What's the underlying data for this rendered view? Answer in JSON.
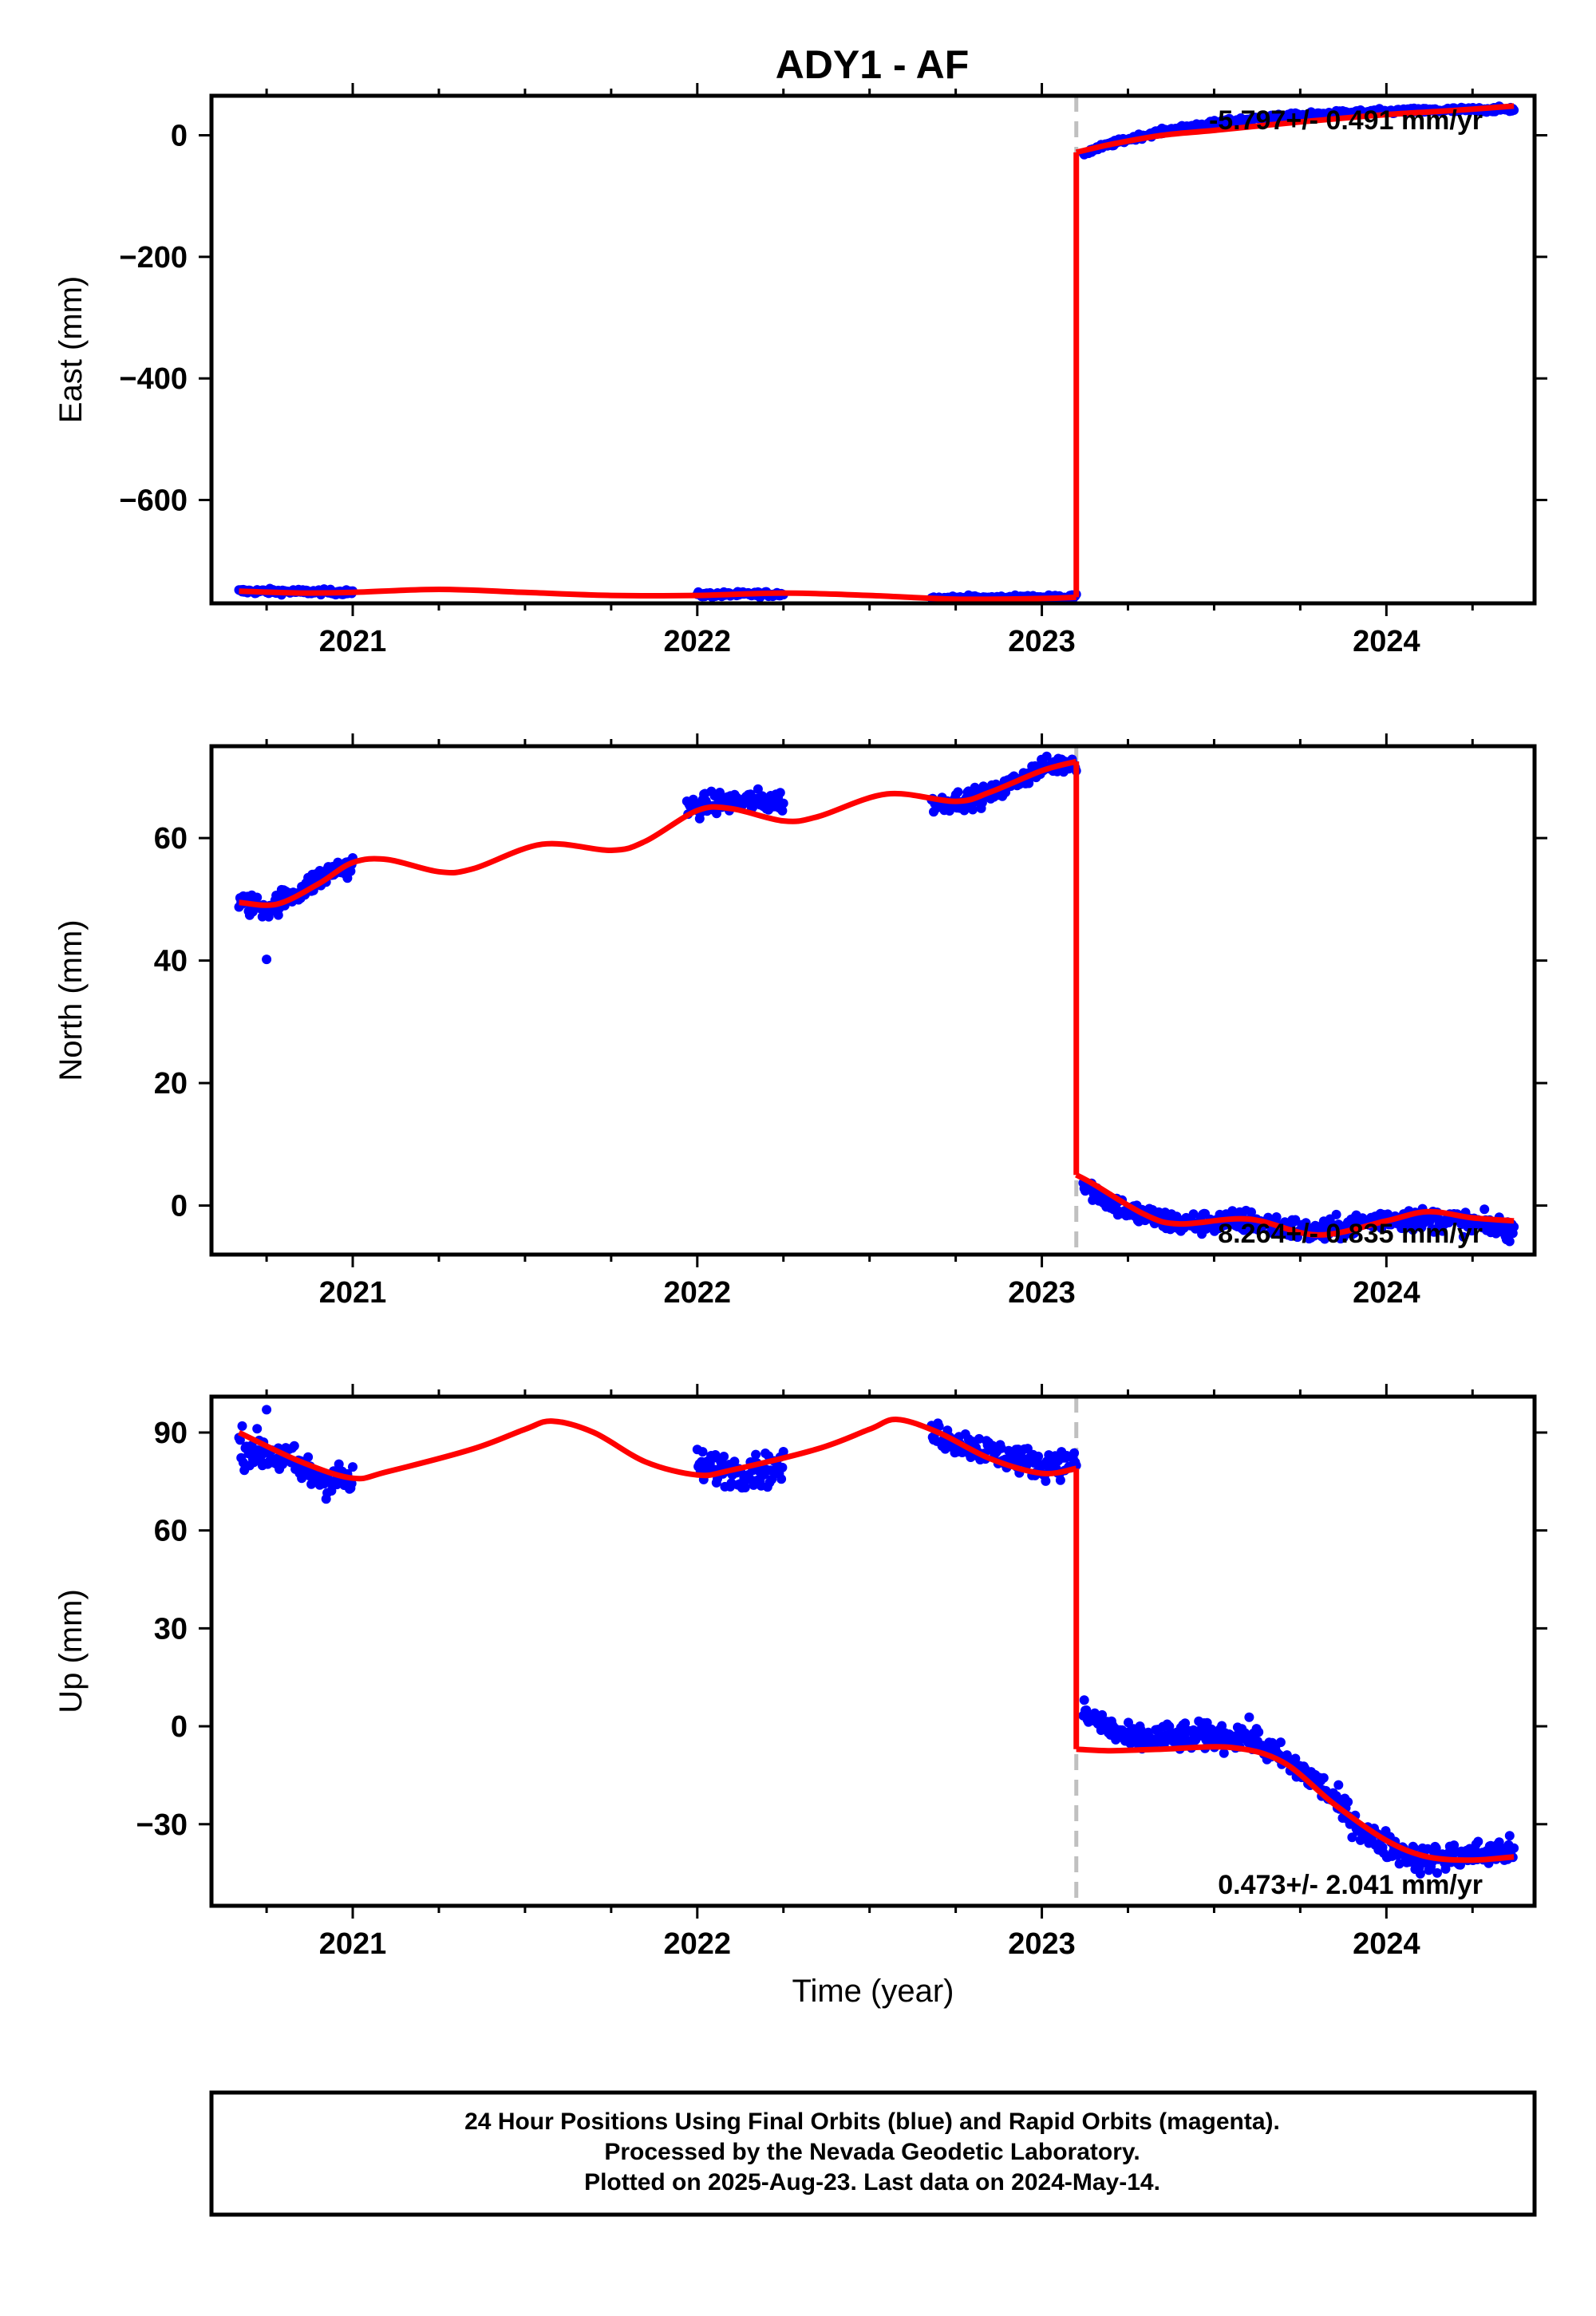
{
  "title": "ADY1 - AF",
  "colors": {
    "final_orbits": "#0000ff",
    "fit": "#ff0000",
    "event_line": "#c0c0c0",
    "frame": "#000000"
  },
  "chart_data": [
    {
      "type": "scatter",
      "panel": "east",
      "ylabel": "East (mm)",
      "xlabel": "",
      "xlim": [
        2020.59,
        2024.43
      ],
      "ylim": [
        -770,
        65
      ],
      "yticks": [
        0,
        -200,
        -400,
        -600
      ],
      "ytick_labels": [
        "0",
        "−200",
        "−400",
        "−600"
      ],
      "xticks": [
        2021,
        2022,
        2023,
        2024
      ],
      "xtick_labels": [
        "2021",
        "2022",
        "2023",
        "2024"
      ],
      "rate_text": "-5.797+/- 0.491 mm/yr",
      "event_epoch": 2023.1,
      "observations": [
        {
          "t0": 2020.67,
          "t1": 2021.0,
          "base": -750,
          "slope": -5,
          "scatter": 3
        },
        {
          "t0": 2022.0,
          "t1": 2022.25,
          "base": -756,
          "slope": 6,
          "scatter": 3
        },
        {
          "t0": 2022.68,
          "t1": 2023.1,
          "base": -762,
          "slope": 4,
          "scatter": 3
        },
        {
          "t0": 2023.12,
          "t1": 2024.37,
          "base": -30,
          "slope": 0,
          "scatter": 3,
          "recovery": [
            75,
            0.35
          ]
        }
      ],
      "fit": {
        "pre": [
          [
            2020.67,
            -750
          ],
          [
            2020.85,
            -753
          ],
          [
            2021.0,
            -752
          ],
          [
            2021.25,
            -747
          ],
          [
            2021.5,
            -752
          ],
          [
            2021.75,
            -757
          ],
          [
            2022.0,
            -757
          ],
          [
            2022.25,
            -753
          ],
          [
            2022.5,
            -757
          ],
          [
            2022.75,
            -763
          ],
          [
            2023.0,
            -762
          ],
          [
            2023.1,
            -760
          ]
        ],
        "post": [
          [
            2023.1,
            -28
          ],
          [
            2023.2,
            -15
          ],
          [
            2023.35,
            0
          ],
          [
            2023.5,
            8
          ],
          [
            2023.75,
            22
          ],
          [
            2024.0,
            34
          ],
          [
            2024.2,
            41
          ],
          [
            2024.37,
            48
          ]
        ]
      }
    },
    {
      "type": "scatter",
      "panel": "north",
      "ylabel": "North (mm)",
      "xlabel": "",
      "xlim": [
        2020.59,
        2024.43
      ],
      "ylim": [
        -8,
        75
      ],
      "yticks": [
        0,
        20,
        40,
        60
      ],
      "ytick_labels": [
        "0",
        "20",
        "40",
        "60"
      ],
      "xticks": [
        2021,
        2022,
        2023,
        2024
      ],
      "xtick_labels": [
        "2021",
        "2022",
        "2023",
        "2024"
      ],
      "rate_text": "8.264+/- 0.835 mm/yr",
      "event_epoch": 2023.1,
      "outliers": [
        [
          2020.75,
          40.2
        ]
      ],
      "observations": [
        {
          "t0": 2020.67,
          "t1": 2021.0,
          "curve": [
            [
              2020.67,
              49.5
            ],
            [
              2020.75,
              48.5
            ],
            [
              2020.85,
              51.5
            ],
            [
              2020.95,
              55
            ],
            [
              2021.0,
              55.5
            ]
          ],
          "scatter": 1.3
        },
        {
          "t0": 2021.97,
          "t1": 2022.25,
          "curve": [
            [
              2021.97,
              65
            ],
            [
              2022.1,
              66
            ],
            [
              2022.25,
              66
            ]
          ],
          "scatter": 1.3
        },
        {
          "t0": 2022.68,
          "t1": 2023.1,
          "curve": [
            [
              2022.68,
              65.5
            ],
            [
              2022.85,
              67
            ],
            [
              2023.0,
              71.5
            ],
            [
              2023.1,
              72.5
            ]
          ],
          "scatter": 1.1
        },
        {
          "t0": 2023.12,
          "t1": 2024.37,
          "curve": [
            [
              2023.12,
              3.5
            ],
            [
              2023.25,
              -1
            ],
            [
              2023.4,
              -3
            ],
            [
              2023.6,
              -2.5
            ],
            [
              2023.8,
              -4.5
            ],
            [
              2024.0,
              -2
            ],
            [
              2024.2,
              -2.5
            ],
            [
              2024.37,
              -4
            ]
          ],
          "scatter": 1.3
        }
      ],
      "fit": {
        "pre": [
          [
            2020.67,
            49.5
          ],
          [
            2020.78,
            49.2
          ],
          [
            2020.9,
            52.5
          ],
          [
            2021.0,
            56
          ],
          [
            2021.1,
            56.5
          ],
          [
            2021.25,
            54.5
          ],
          [
            2021.35,
            55
          ],
          [
            2021.55,
            59
          ],
          [
            2021.75,
            58
          ],
          [
            2021.85,
            59.5
          ],
          [
            2022.0,
            64.5
          ],
          [
            2022.1,
            64.8
          ],
          [
            2022.25,
            62.8
          ],
          [
            2022.35,
            63.5
          ],
          [
            2022.55,
            67.2
          ],
          [
            2022.75,
            66
          ],
          [
            2022.85,
            67.5
          ],
          [
            2023.0,
            71
          ],
          [
            2023.1,
            72.5
          ]
        ],
        "post": [
          [
            2023.1,
            5
          ],
          [
            2023.15,
            3.5
          ],
          [
            2023.3,
            -1.5
          ],
          [
            2023.4,
            -3
          ],
          [
            2023.6,
            -2.2
          ],
          [
            2023.8,
            -4.8
          ],
          [
            2024.0,
            -2.5
          ],
          [
            2024.12,
            -1
          ],
          [
            2024.25,
            -2
          ],
          [
            2024.37,
            -2.5
          ]
        ]
      }
    },
    {
      "type": "scatter",
      "panel": "up",
      "ylabel": "Up (mm)",
      "xlabel": "Time (year)",
      "xlim": [
        2020.59,
        2024.43
      ],
      "ylim": [
        -55,
        101
      ],
      "yticks": [
        90,
        60,
        30,
        0,
        -30
      ],
      "ytick_labels": [
        "90",
        "60",
        "30",
        "0",
        "−30"
      ],
      "xticks": [
        2021,
        2022,
        2023,
        2024
      ],
      "xtick_labels": [
        "2021",
        "2022",
        "2023",
        "2024"
      ],
      "rate_text": "0.473+/- 2.041 mm/yr",
      "event_epoch": 2023.1,
      "outliers": [
        [
          2020.75,
          97
        ]
      ],
      "observations": [
        {
          "t0": 2020.67,
          "t1": 2021.0,
          "curve": [
            [
              2020.67,
              86
            ],
            [
              2020.8,
              82
            ],
            [
              2020.9,
              76
            ],
            [
              2021.0,
              75
            ]
          ],
          "scatter": 4
        },
        {
          "t0": 2022.0,
          "t1": 2022.25,
          "curve": [
            [
              2022.0,
              80
            ],
            [
              2022.12,
              78
            ],
            [
              2022.25,
              79
            ]
          ],
          "scatter": 3.5
        },
        {
          "t0": 2022.68,
          "t1": 2023.1,
          "curve": [
            [
              2022.68,
              90
            ],
            [
              2022.85,
              84
            ],
            [
              2023.0,
              80
            ],
            [
              2023.1,
              81
            ]
          ],
          "scatter": 3
        },
        {
          "t0": 2023.12,
          "t1": 2024.37,
          "curve": [
            [
              2023.12,
              4
            ],
            [
              2023.25,
              -4
            ],
            [
              2023.45,
              -3
            ],
            [
              2023.6,
              -3
            ],
            [
              2023.8,
              -17
            ],
            [
              2023.95,
              -34
            ],
            [
              2024.1,
              -41
            ],
            [
              2024.37,
              -38
            ]
          ],
          "scatter": 3
        }
      ],
      "fit": {
        "pre": [
          [
            2020.67,
            90
          ],
          [
            2020.85,
            81
          ],
          [
            2021.0,
            76
          ],
          [
            2021.1,
            78
          ],
          [
            2021.35,
            85
          ],
          [
            2021.5,
            91
          ],
          [
            2021.58,
            93.5
          ],
          [
            2021.7,
            90
          ],
          [
            2021.85,
            81
          ],
          [
            2022.0,
            77
          ],
          [
            2022.1,
            78.5
          ],
          [
            2022.35,
            85
          ],
          [
            2022.5,
            91
          ],
          [
            2022.58,
            94
          ],
          [
            2022.7,
            90
          ],
          [
            2022.85,
            82
          ],
          [
            2023.0,
            77.5
          ],
          [
            2023.1,
            79
          ]
        ],
        "post": [
          [
            2023.1,
            -7
          ],
          [
            2023.2,
            -7.5
          ],
          [
            2023.35,
            -7
          ],
          [
            2023.55,
            -6.5
          ],
          [
            2023.7,
            -11
          ],
          [
            2023.85,
            -24
          ],
          [
            2024.0,
            -35
          ],
          [
            2024.12,
            -40
          ],
          [
            2024.25,
            -41
          ],
          [
            2024.37,
            -40
          ]
        ]
      }
    }
  ],
  "footer": {
    "line1": "24 Hour Positions Using Final Orbits (blue) and Rapid Orbits (magenta).",
    "line2": "Processed by the Nevada Geodetic Laboratory.",
    "line3": "Plotted on 2025-Aug-23. Last data on 2024-May-14."
  }
}
